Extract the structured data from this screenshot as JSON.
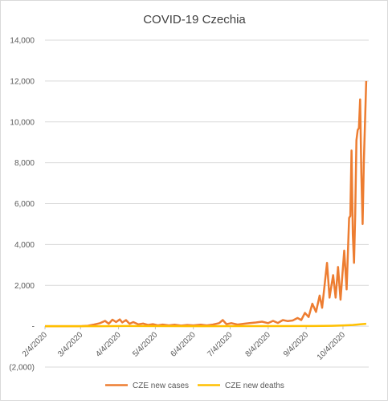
{
  "chart_data": {
    "type": "line",
    "title": "COVID-19 Czechia",
    "xlabel": "",
    "ylabel": "",
    "ylim": [
      -2000,
      14000
    ],
    "yticks": [
      -2000,
      0,
      2000,
      4000,
      6000,
      8000,
      10000,
      12000,
      14000
    ],
    "ytick_labels": [
      "(2,000)",
      "-",
      "2,000",
      "4,000",
      "6,000",
      "8,000",
      "10,000",
      "12,000",
      "14,000"
    ],
    "x_dates": [
      "2/4/2020",
      "3/4/2020",
      "4/4/2020",
      "5/4/2020",
      "6/4/2020",
      "7/4/2020",
      "8/4/2020",
      "9/4/2020",
      "10/4/2020"
    ],
    "x_start": "2020-02-04",
    "x_end": "2020-10-25",
    "grid": true,
    "legend_position": "bottom",
    "series": [
      {
        "name": "CZE new cases",
        "color": "#ed7d31",
        "points": [
          [
            "2020-02-04",
            0
          ],
          [
            "2020-03-01",
            0
          ],
          [
            "2020-03-05",
            5
          ],
          [
            "2020-03-10",
            20
          ],
          [
            "2020-03-15",
            80
          ],
          [
            "2020-03-20",
            150
          ],
          [
            "2020-03-24",
            260
          ],
          [
            "2020-03-27",
            120
          ],
          [
            "2020-03-30",
            320
          ],
          [
            "2020-04-02",
            200
          ],
          [
            "2020-04-05",
            330
          ],
          [
            "2020-04-07",
            180
          ],
          [
            "2020-04-10",
            300
          ],
          [
            "2020-04-13",
            120
          ],
          [
            "2020-04-16",
            200
          ],
          [
            "2020-04-20",
            90
          ],
          [
            "2020-04-24",
            130
          ],
          [
            "2020-04-28",
            60
          ],
          [
            "2020-05-02",
            100
          ],
          [
            "2020-05-06",
            40
          ],
          [
            "2020-05-10",
            80
          ],
          [
            "2020-05-15",
            40
          ],
          [
            "2020-05-20",
            70
          ],
          [
            "2020-05-25",
            30
          ],
          [
            "2020-05-30",
            60
          ],
          [
            "2020-06-04",
            40
          ],
          [
            "2020-06-10",
            70
          ],
          [
            "2020-06-15",
            40
          ],
          [
            "2020-06-20",
            80
          ],
          [
            "2020-06-25",
            150
          ],
          [
            "2020-06-28",
            300
          ],
          [
            "2020-07-01",
            100
          ],
          [
            "2020-07-05",
            150
          ],
          [
            "2020-07-10",
            80
          ],
          [
            "2020-07-15",
            120
          ],
          [
            "2020-07-20",
            150
          ],
          [
            "2020-07-25",
            180
          ],
          [
            "2020-07-30",
            220
          ],
          [
            "2020-08-04",
            150
          ],
          [
            "2020-08-08",
            260
          ],
          [
            "2020-08-12",
            160
          ],
          [
            "2020-08-16",
            300
          ],
          [
            "2020-08-20",
            250
          ],
          [
            "2020-08-24",
            280
          ],
          [
            "2020-08-28",
            400
          ],
          [
            "2020-08-31",
            300
          ],
          [
            "2020-09-03",
            650
          ],
          [
            "2020-09-06",
            450
          ],
          [
            "2020-09-09",
            1100
          ],
          [
            "2020-09-12",
            700
          ],
          [
            "2020-09-15",
            1500
          ],
          [
            "2020-09-17",
            900
          ],
          [
            "2020-09-21",
            3100
          ],
          [
            "2020-09-23",
            1400
          ],
          [
            "2020-09-26",
            2500
          ],
          [
            "2020-09-28",
            1400
          ],
          [
            "2020-09-30",
            2900
          ],
          [
            "2020-10-02",
            1300
          ],
          [
            "2020-10-05",
            3700
          ],
          [
            "2020-10-07",
            1800
          ],
          [
            "2020-10-09",
            5300
          ],
          [
            "2020-10-10",
            5400
          ],
          [
            "2020-10-11",
            8600
          ],
          [
            "2020-10-12",
            4500
          ],
          [
            "2020-10-13",
            3100
          ],
          [
            "2020-10-14",
            5500
          ],
          [
            "2020-10-15",
            9100
          ],
          [
            "2020-10-16",
            9600
          ],
          [
            "2020-10-17",
            9700
          ],
          [
            "2020-10-18",
            11100
          ],
          [
            "2020-10-19",
            7500
          ],
          [
            "2020-10-20",
            5000
          ],
          [
            "2020-10-21",
            8000
          ],
          [
            "2020-10-23",
            12000
          ]
        ]
      },
      {
        "name": "CZE new deaths",
        "color": "#ffc000",
        "points": [
          [
            "2020-02-04",
            0
          ],
          [
            "2020-03-20",
            2
          ],
          [
            "2020-04-10",
            10
          ],
          [
            "2020-05-10",
            3
          ],
          [
            "2020-06-10",
            2
          ],
          [
            "2020-07-10",
            3
          ],
          [
            "2020-08-10",
            5
          ],
          [
            "2020-09-10",
            10
          ],
          [
            "2020-09-25",
            20
          ],
          [
            "2020-10-05",
            40
          ],
          [
            "2020-10-12",
            60
          ],
          [
            "2020-10-18",
            90
          ],
          [
            "2020-10-23",
            120
          ]
        ]
      }
    ]
  }
}
